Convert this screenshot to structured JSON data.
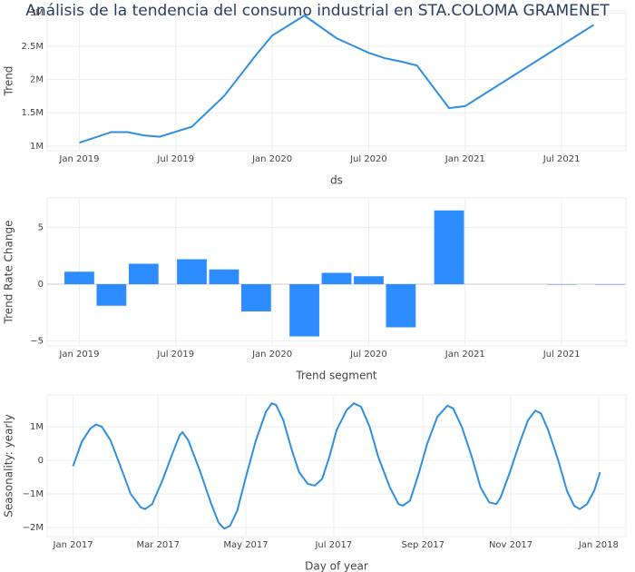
{
  "title": "Análisis de la tendencia del consumo industrial en STA.COLOMA GRAMENET",
  "chart_data": [
    {
      "type": "line",
      "xlabel": "ds",
      "ylabel": "Trend",
      "color": "#2f8ee0",
      "x": [
        "2019-01",
        "2019-03",
        "2019-04",
        "2019-05",
        "2019-06",
        "2019-08",
        "2019-10",
        "2019-12",
        "2020-01",
        "2020-03",
        "2020-05",
        "2020-06",
        "2020-07",
        "2020-08",
        "2020-09",
        "2020-10",
        "2020-12",
        "2021-01",
        "2021-09"
      ],
      "values": [
        1050000,
        1210000,
        1210000,
        1160000,
        1140000,
        1290000,
        1750000,
        2370000,
        2660000,
        2960000,
        2620000,
        2510000,
        2400000,
        2320000,
        2270000,
        2210000,
        1570000,
        1600000,
        2820000
      ],
      "xlim": [
        "2018-11",
        "2021-11"
      ],
      "xticks": [
        {
          "value": "2019-01",
          "label": "Jan 2019"
        },
        {
          "value": "2019-07",
          "label": "Jul 2019"
        },
        {
          "value": "2020-01",
          "label": "Jan 2020"
        },
        {
          "value": "2020-07",
          "label": "Jul 2020"
        },
        {
          "value": "2021-01",
          "label": "Jan 2021"
        },
        {
          "value": "2021-07",
          "label": "Jul 2021"
        }
      ],
      "ylim": [
        930000,
        3030000
      ],
      "yticks": [
        {
          "value": 1000000,
          "label": "1M"
        },
        {
          "value": 1500000,
          "label": "1.5M"
        },
        {
          "value": 2000000,
          "label": "2M"
        },
        {
          "value": 2500000,
          "label": "2.5M"
        },
        {
          "value": 3000000,
          "label": "3M"
        }
      ],
      "grid": true
    },
    {
      "type": "bar",
      "xlabel": "Trend segment",
      "ylabel": "Trend Rate Change",
      "color": "#2d8cff",
      "x": [
        "2019-01",
        "2019-03",
        "2019-05",
        "2019-08",
        "2019-10",
        "2019-12",
        "2020-03",
        "2020-05",
        "2020-07",
        "2020-09",
        "2020-12",
        "2021-07",
        "2021-10"
      ],
      "values": [
        1.1,
        -1.9,
        1.8,
        2.2,
        1.3,
        -2.4,
        -4.6,
        1.0,
        0.7,
        -3.8,
        6.5,
        0,
        0
      ],
      "xlim": [
        "2018-11",
        "2021-11"
      ],
      "xticks": [
        {
          "value": "2019-01",
          "label": "Jan 2019"
        },
        {
          "value": "2019-07",
          "label": "Jul 2019"
        },
        {
          "value": "2020-01",
          "label": "Jan 2020"
        },
        {
          "value": "2020-07",
          "label": "Jul 2020"
        },
        {
          "value": "2021-01",
          "label": "Jan 2021"
        },
        {
          "value": "2021-07",
          "label": "Jul 2021"
        }
      ],
      "ylim": [
        -5.44,
        7.6
      ],
      "yticks": [
        {
          "value": -5,
          "label": "−5"
        },
        0,
        5
      ],
      "grid": true
    },
    {
      "type": "line",
      "xlabel": "Day of year",
      "ylabel": "Seasonality: yearly",
      "color": "#2f8ee0",
      "x": [
        0,
        6,
        12,
        16,
        20,
        26,
        34,
        40,
        47,
        50,
        55,
        62,
        69,
        74,
        76,
        80,
        88,
        96,
        101,
        105,
        109,
        114,
        120,
        127,
        134,
        138,
        141,
        146,
        152,
        157,
        163,
        168,
        173,
        178,
        183,
        190,
        195,
        200,
        206,
        212,
        220,
        226,
        229,
        234,
        240,
        246,
        253,
        260,
        264,
        270,
        277,
        283,
        289,
        294,
        297,
        303,
        310,
        316,
        321,
        325,
        330,
        337,
        343,
        348,
        352,
        357,
        362,
        366
      ],
      "values": [
        -170000,
        550000,
        950000,
        1070000,
        1000000,
        600000,
        -300000,
        -1000000,
        -1400000,
        -1450000,
        -1300000,
        -600000,
        200000,
        750000,
        840000,
        600000,
        -300000,
        -1300000,
        -1850000,
        -2030000,
        -1950000,
        -1500000,
        -500000,
        600000,
        1450000,
        1700000,
        1650000,
        1200000,
        300000,
        -350000,
        -700000,
        -750000,
        -550000,
        100000,
        900000,
        1500000,
        1700000,
        1600000,
        1000000,
        100000,
        -800000,
        -1300000,
        -1350000,
        -1200000,
        -400000,
        500000,
        1300000,
        1630000,
        1550000,
        1000000,
        100000,
        -800000,
        -1250000,
        -1300000,
        -1100000,
        -400000,
        500000,
        1200000,
        1480000,
        1400000,
        900000,
        0,
        -900000,
        -1350000,
        -1450000,
        -1300000,
        -900000,
        -350000
      ],
      "xlim": [
        -18,
        384
      ],
      "xticks": [
        {
          "value": 0,
          "label": "Jan 2017"
        },
        {
          "value": 59,
          "label": "Mar 2017"
        },
        {
          "value": 120,
          "label": "May 2017"
        },
        {
          "value": 181,
          "label": "Jul 2017"
        },
        {
          "value": 243,
          "label": "Sep 2017"
        },
        {
          "value": 304,
          "label": "Nov 2017"
        },
        {
          "value": 365,
          "label": "Jan 2018"
        }
      ],
      "ylim": [
        -2270000,
        1950000
      ],
      "yticks": [
        {
          "value": -2000000,
          "label": "−2M"
        },
        {
          "value": -1000000,
          "label": "−1M"
        },
        0,
        {
          "value": 1000000,
          "label": "1M"
        }
      ],
      "grid": true
    }
  ]
}
